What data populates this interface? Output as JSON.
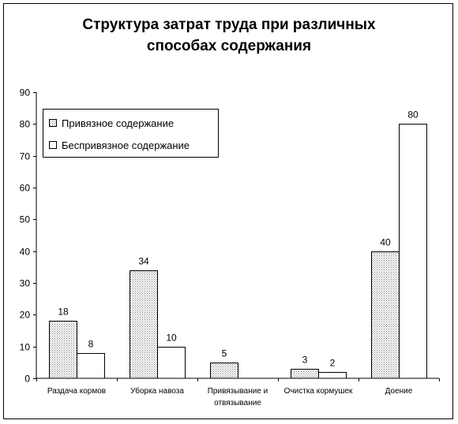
{
  "chart_data": {
    "type": "bar",
    "title_line1": "Структура затрат труда при различных",
    "title_line2": "способах содержания",
    "categories": [
      [
        "Раздача кормов"
      ],
      [
        "Уборка навоза"
      ],
      [
        "Привязывание и",
        "отвязывание"
      ],
      [
        "Очистка кормушек"
      ],
      [
        "Доение"
      ]
    ],
    "series": [
      {
        "name": "Привязное содержание",
        "values": [
          18,
          34,
          5,
          3,
          40
        ],
        "fill": "pattern"
      },
      {
        "name": "Беспривязное содержание",
        "values": [
          8,
          10,
          null,
          2,
          80
        ],
        "fill": "#ffffff"
      }
    ],
    "ylim": [
      0,
      90
    ],
    "yticks": [
      0,
      10,
      20,
      30,
      40,
      50,
      60,
      70,
      80,
      90
    ],
    "grid": false,
    "legend_position": "top-left",
    "colors": {
      "stroke": "#000000",
      "background": "#ffffff",
      "pattern_dot": "#7f7f7f"
    }
  }
}
